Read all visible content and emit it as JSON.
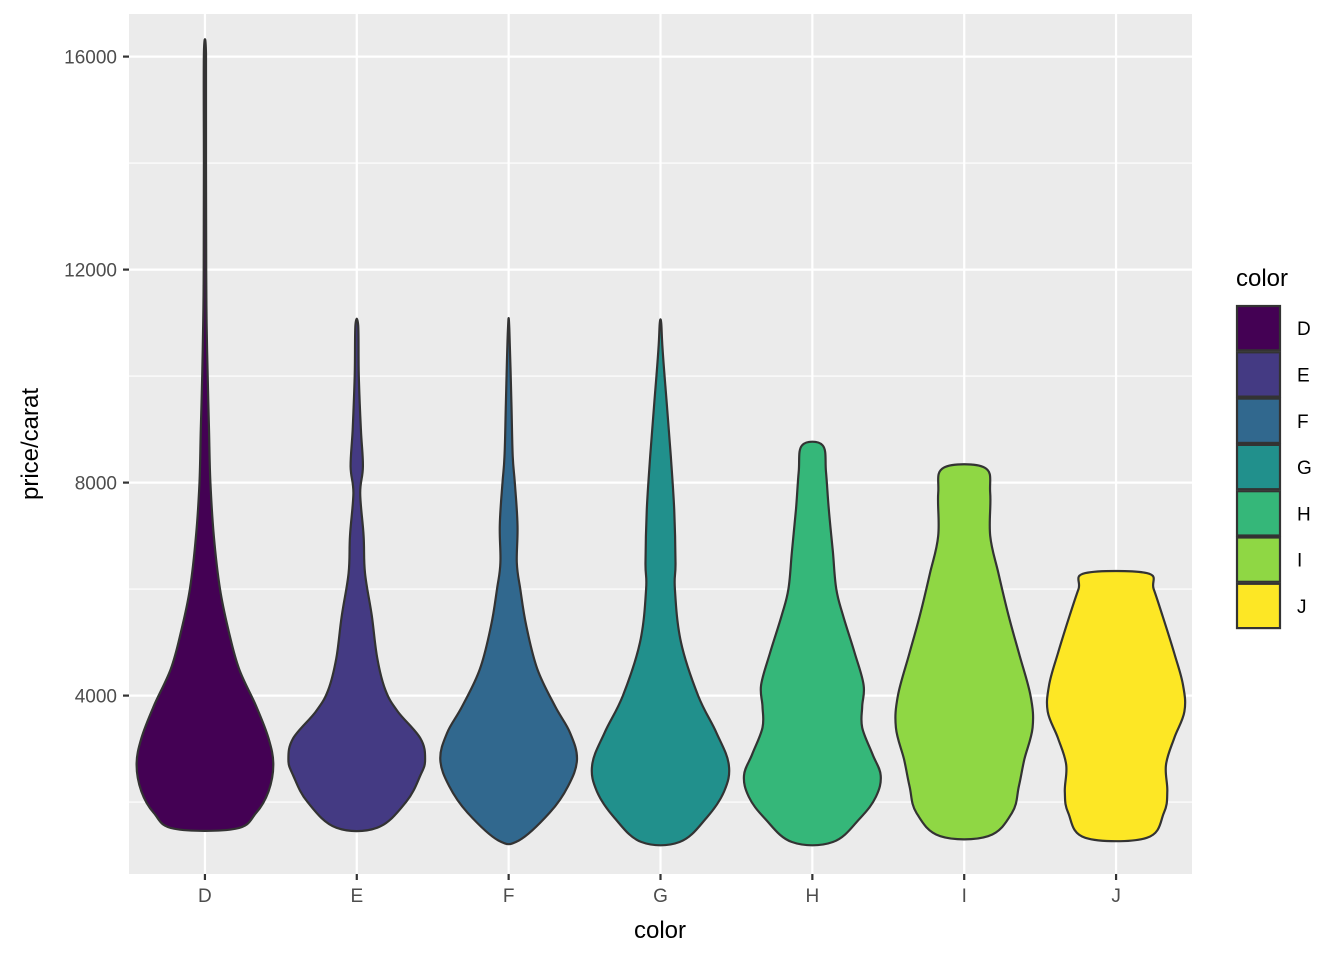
{
  "chart_data": {
    "type": "violin",
    "xlabel": "color",
    "ylabel": "price/carat",
    "categories": [
      "D",
      "E",
      "F",
      "G",
      "H",
      "I",
      "J"
    ],
    "y_ticks": [
      4000,
      8000,
      12000,
      16000
    ],
    "y_tick_labels": [
      "4000",
      "8000",
      "12000",
      "16000"
    ],
    "ylim": [
      650,
      16800
    ],
    "grid": true,
    "legend": {
      "title": "color",
      "placement": "right",
      "entries": [
        "D",
        "E",
        "F",
        "G",
        "H",
        "I",
        "J"
      ]
    },
    "fill_colors": [
      "#440154",
      "#443A83",
      "#31688E",
      "#21908C",
      "#35B779",
      "#8FD744",
      "#FDE725"
    ],
    "series": [
      {
        "name": "D",
        "min": 1500,
        "max": 16050,
        "profile": [
          [
            1500,
            0.45
          ],
          [
            1800,
            0.75
          ],
          [
            2200,
            0.93
          ],
          [
            2700,
            1.0
          ],
          [
            3200,
            0.93
          ],
          [
            3800,
            0.75
          ],
          [
            4500,
            0.5
          ],
          [
            5200,
            0.35
          ],
          [
            6000,
            0.22
          ],
          [
            7000,
            0.13
          ],
          [
            8000,
            0.08
          ],
          [
            9000,
            0.06
          ],
          [
            10000,
            0.04
          ],
          [
            11000,
            0.025
          ],
          [
            12000,
            0.018
          ],
          [
            14000,
            0.015
          ],
          [
            16050,
            0.015
          ]
        ]
      },
      {
        "name": "E",
        "min": 1520,
        "max": 10950,
        "profile": [
          [
            1520,
            0.3
          ],
          [
            2000,
            0.72
          ],
          [
            2500,
            0.93
          ],
          [
            2800,
            1.0
          ],
          [
            3200,
            0.93
          ],
          [
            3700,
            0.6
          ],
          [
            4100,
            0.42
          ],
          [
            4700,
            0.3
          ],
          [
            5500,
            0.22
          ],
          [
            6300,
            0.12
          ],
          [
            7000,
            0.1
          ],
          [
            7800,
            0.05
          ],
          [
            8300,
            0.09
          ],
          [
            9000,
            0.06
          ],
          [
            10000,
            0.03
          ],
          [
            10950,
            0.02
          ]
        ]
      },
      {
        "name": "F",
        "min": 1280,
        "max": 10900,
        "profile": [
          [
            1280,
            0.15
          ],
          [
            1800,
            0.6
          ],
          [
            2300,
            0.87
          ],
          [
            2800,
            1.0
          ],
          [
            3300,
            0.9
          ],
          [
            3800,
            0.68
          ],
          [
            4500,
            0.42
          ],
          [
            5300,
            0.26
          ],
          [
            6000,
            0.17
          ],
          [
            6500,
            0.12
          ],
          [
            7200,
            0.13
          ],
          [
            8000,
            0.09
          ],
          [
            8500,
            0.06
          ],
          [
            9500,
            0.04
          ],
          [
            10900,
            0.01
          ]
        ]
      },
      {
        "name": "G",
        "min": 1250,
        "max": 11000,
        "profile": [
          [
            1250,
            0.28
          ],
          [
            1700,
            0.67
          ],
          [
            2200,
            0.93
          ],
          [
            2700,
            1.0
          ],
          [
            3300,
            0.82
          ],
          [
            4000,
            0.55
          ],
          [
            5000,
            0.3
          ],
          [
            6000,
            0.21
          ],
          [
            6500,
            0.22
          ],
          [
            7500,
            0.2
          ],
          [
            8500,
            0.15
          ],
          [
            9500,
            0.09
          ],
          [
            10500,
            0.03
          ],
          [
            11000,
            0.01
          ]
        ]
      },
      {
        "name": "H",
        "min": 1250,
        "max": 8700,
        "profile": [
          [
            1250,
            0.3
          ],
          [
            1700,
            0.7
          ],
          [
            2100,
            0.93
          ],
          [
            2500,
            1.0
          ],
          [
            2900,
            0.88
          ],
          [
            3400,
            0.73
          ],
          [
            3800,
            0.73
          ],
          [
            4200,
            0.75
          ],
          [
            4800,
            0.62
          ],
          [
            5500,
            0.45
          ],
          [
            6000,
            0.35
          ],
          [
            6700,
            0.3
          ],
          [
            7500,
            0.24
          ],
          [
            8200,
            0.2
          ],
          [
            8700,
            0.15
          ]
        ]
      },
      {
        "name": "I",
        "min": 1360,
        "max": 8280,
        "profile": [
          [
            1360,
            0.35
          ],
          [
            1800,
            0.7
          ],
          [
            2300,
            0.8
          ],
          [
            2800,
            0.88
          ],
          [
            3400,
            1.0
          ],
          [
            4000,
            0.97
          ],
          [
            4800,
            0.8
          ],
          [
            5500,
            0.65
          ],
          [
            6300,
            0.5
          ],
          [
            7000,
            0.38
          ],
          [
            7800,
            0.38
          ],
          [
            8280,
            0.3
          ]
        ]
      },
      {
        "name": "J",
        "min": 1330,
        "max": 6300,
        "profile": [
          [
            1330,
            0.45
          ],
          [
            1800,
            0.7
          ],
          [
            2200,
            0.75
          ],
          [
            2700,
            0.73
          ],
          [
            3200,
            0.85
          ],
          [
            3700,
            1.0
          ],
          [
            4200,
            0.98
          ],
          [
            4800,
            0.85
          ],
          [
            5500,
            0.68
          ],
          [
            6000,
            0.55
          ],
          [
            6300,
            0.45
          ]
        ]
      }
    ]
  }
}
